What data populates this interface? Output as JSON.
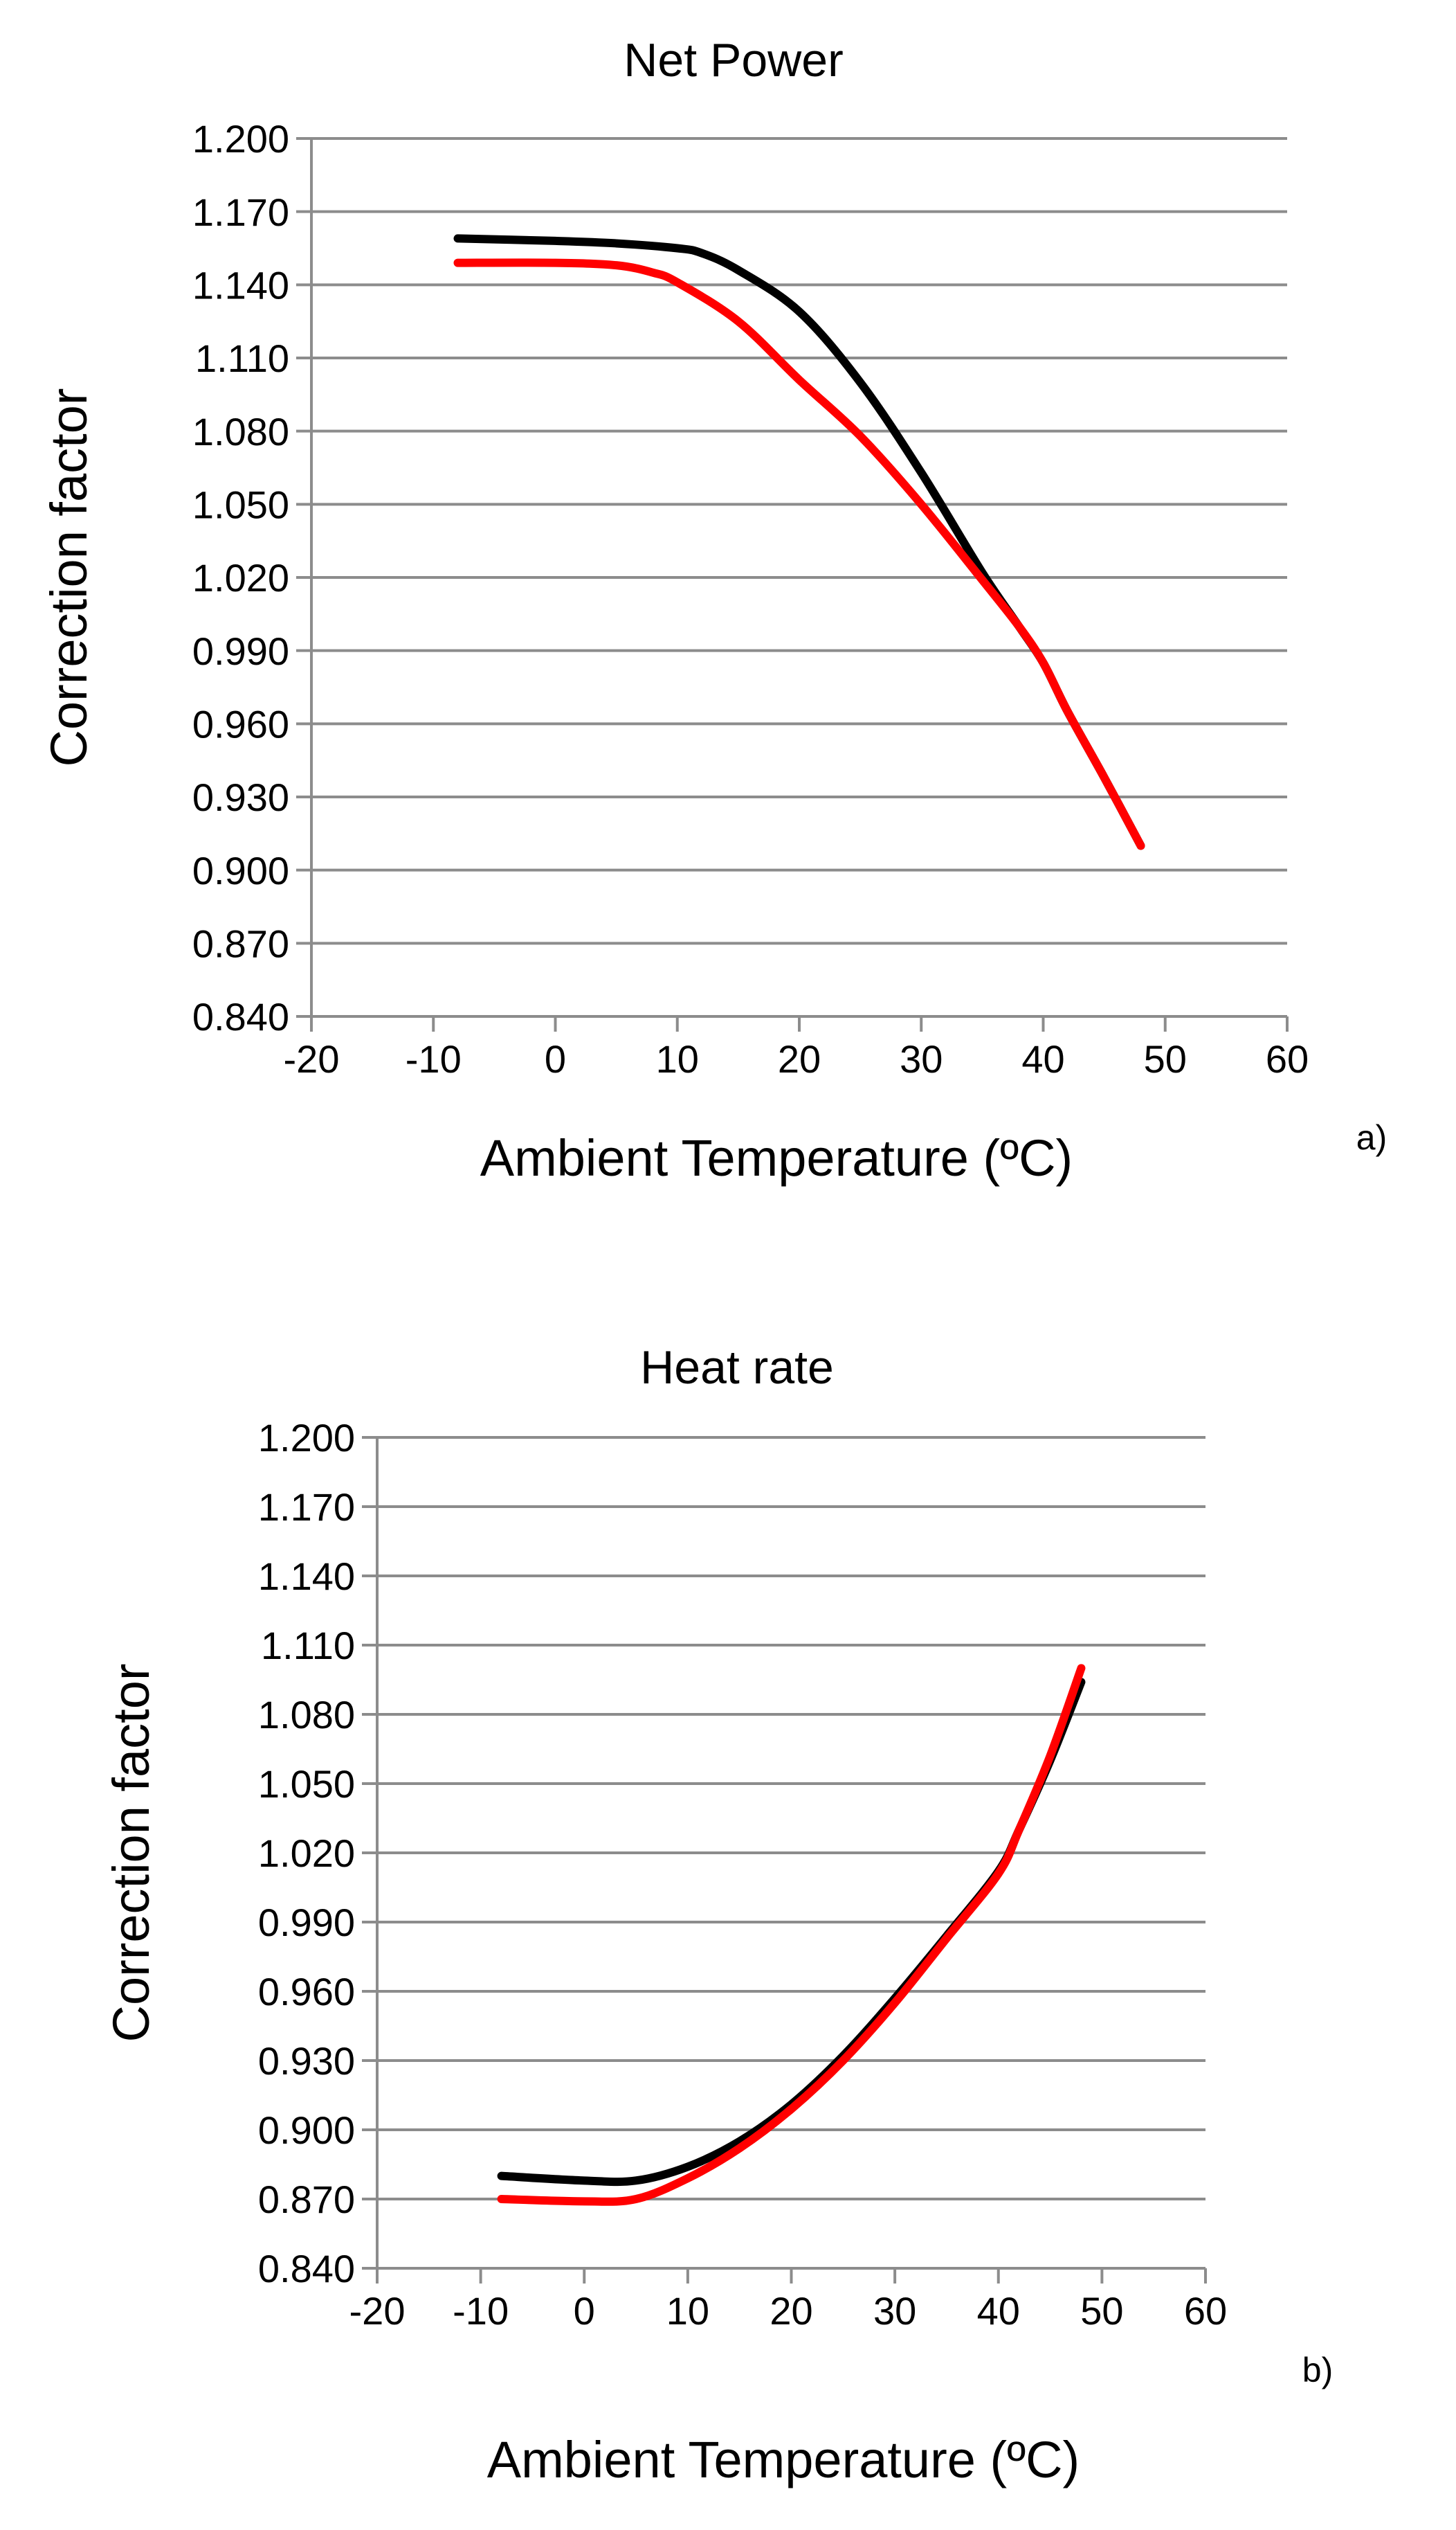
{
  "chart_data": [
    {
      "type": "line",
      "panel_label": "a)",
      "title": "Net Power",
      "xlabel": "Ambient Temperature (ºC)",
      "ylabel": "Correction factor",
      "xlim": [
        -20,
        60
      ],
      "ylim": [
        0.84,
        1.2
      ],
      "xticks": [
        -20,
        -10,
        0,
        10,
        20,
        30,
        40,
        50,
        60
      ],
      "xtick_labels": [
        "-20",
        "-10",
        "0",
        "10",
        "20",
        "30",
        "40",
        "50",
        "60"
      ],
      "yticks": [
        0.84,
        0.87,
        0.9,
        0.93,
        0.96,
        0.99,
        1.02,
        1.05,
        1.08,
        1.11,
        1.14,
        1.17,
        1.2
      ],
      "ytick_labels": [
        "0.840",
        "0.870",
        "0.900",
        "0.930",
        "0.960",
        "0.990",
        "1.020",
        "1.050",
        "1.080",
        "1.110",
        "1.140",
        "1.170",
        "1.200"
      ],
      "grid": "horizontal",
      "series": [
        {
          "name": "black",
          "color": "#000000",
          "x": [
            -8,
            0,
            5,
            10,
            12,
            15,
            20,
            25,
            30,
            35,
            38,
            40,
            42,
            45,
            48
          ],
          "y": [
            1.159,
            1.158,
            1.157,
            1.155,
            1.153,
            1.146,
            1.129,
            1.1,
            1.063,
            1.022,
            1.0,
            0.985,
            0.965,
            0.938,
            0.91
          ]
        },
        {
          "name": "red",
          "color": "#ff0000",
          "x": [
            -8,
            0,
            5,
            8,
            10,
            15,
            20,
            25,
            30,
            35,
            38,
            40,
            42,
            45,
            48
          ],
          "y": [
            1.149,
            1.149,
            1.148,
            1.145,
            1.141,
            1.125,
            1.101,
            1.078,
            1.05,
            1.019,
            1.0,
            0.985,
            0.965,
            0.938,
            0.91
          ]
        }
      ]
    },
    {
      "type": "line",
      "panel_label": "b)",
      "title": "Heat rate",
      "xlabel": "Ambient Temperature (ºC)",
      "ylabel": "Correction factor",
      "xlim": [
        -20,
        60
      ],
      "ylim": [
        0.84,
        1.2
      ],
      "xticks": [
        -20,
        -10,
        0,
        10,
        20,
        30,
        40,
        50,
        60
      ],
      "xtick_labels": [
        "-20",
        "-10",
        "0",
        "10",
        "20",
        "30",
        "40",
        "50",
        "60"
      ],
      "yticks": [
        0.84,
        0.87,
        0.9,
        0.93,
        0.96,
        0.99,
        1.02,
        1.05,
        1.08,
        1.11,
        1.14,
        1.17,
        1.2
      ],
      "ytick_labels": [
        "0.840",
        "0.870",
        "0.900",
        "0.930",
        "0.960",
        "0.990",
        "1.020",
        "1.050",
        "1.080",
        "1.110",
        "1.140",
        "1.170",
        "1.200"
      ],
      "grid": "horizontal",
      "series": [
        {
          "name": "black",
          "color": "#000000",
          "x": [
            -8,
            0,
            5,
            10,
            15,
            20,
            25,
            30,
            35,
            40,
            42,
            45,
            48
          ],
          "y": [
            0.88,
            0.878,
            0.878,
            0.884,
            0.895,
            0.911,
            0.932,
            0.957,
            0.984,
            1.012,
            1.03,
            1.06,
            1.094
          ]
        },
        {
          "name": "red",
          "color": "#ff0000",
          "x": [
            -8,
            0,
            5,
            10,
            15,
            20,
            25,
            30,
            35,
            40,
            42,
            45,
            48
          ],
          "y": [
            0.87,
            0.869,
            0.87,
            0.879,
            0.892,
            0.909,
            0.93,
            0.955,
            0.983,
            1.011,
            1.03,
            1.062,
            1.1
          ]
        }
      ]
    }
  ]
}
